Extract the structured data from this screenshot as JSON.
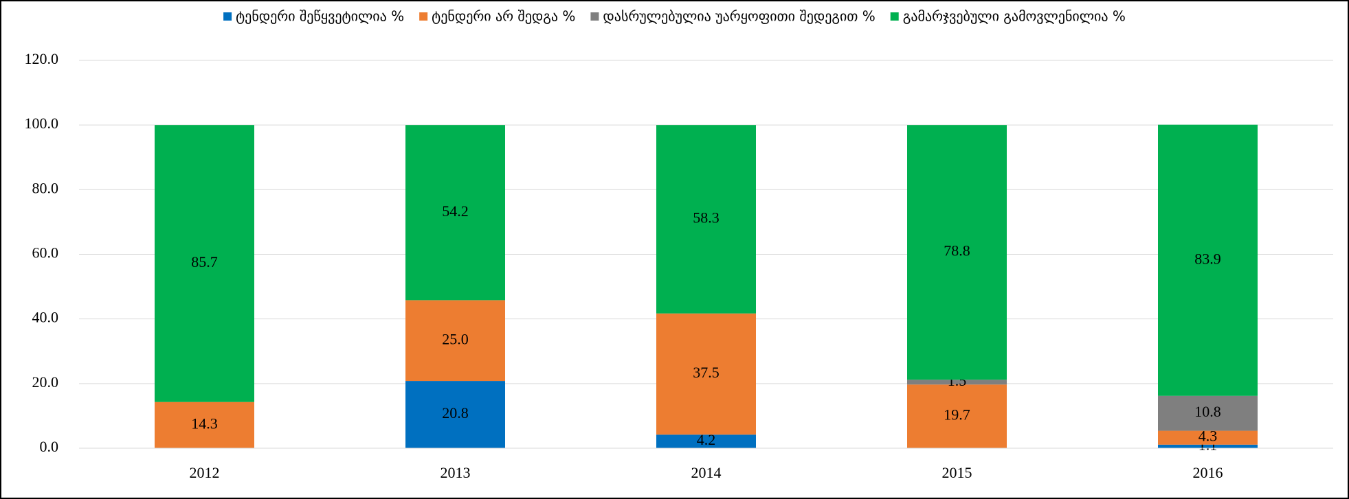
{
  "chart_data": {
    "type": "stacked_bar",
    "categories": [
      "2012",
      "2013",
      "2014",
      "2015",
      "2016"
    ],
    "series": [
      {
        "name": "ტენდერი შეწყვეტილია %",
        "color": "#0070c0",
        "values": [
          null,
          20.8,
          4.2,
          null,
          1.1
        ],
        "value_labels": [
          null,
          "20.8",
          "4.2",
          null,
          "1.1"
        ]
      },
      {
        "name": "ტენდერი არ შედგა %",
        "color": "#ed7d31",
        "values": [
          14.3,
          25,
          37.5,
          19.7,
          4.3
        ],
        "value_labels": [
          "14.3",
          "25.0",
          "37.5",
          "19.7",
          "4.3"
        ]
      },
      {
        "name": "დასრულებულია უარყოფითი შედეგით %",
        "color": "#7f7f7f",
        "values": [
          null,
          null,
          null,
          1.5,
          10.8
        ],
        "value_labels": [
          null,
          null,
          null,
          "1.5",
          "10.8"
        ]
      },
      {
        "name": "გამარჯვებული გამოვლენილია %",
        "color": "#00b050",
        "values": [
          85.7,
          54.2,
          58.3,
          78.8,
          83.9
        ],
        "value_labels": [
          "85.7",
          "54.2",
          "58.3",
          "78.8",
          "83.9"
        ]
      }
    ],
    "ylim": [
      0,
      120
    ],
    "yticks": [
      {
        "value": 0,
        "label": "0.0"
      },
      {
        "value": 20,
        "label": "20.0"
      },
      {
        "value": 40,
        "label": "40.0"
      },
      {
        "value": 60,
        "label": "60.0"
      },
      {
        "value": 80,
        "label": "80.0"
      },
      {
        "value": 100,
        "label": "100.0"
      },
      {
        "value": 120,
        "label": "120.0"
      }
    ],
    "grid": true,
    "legend": "top"
  }
}
